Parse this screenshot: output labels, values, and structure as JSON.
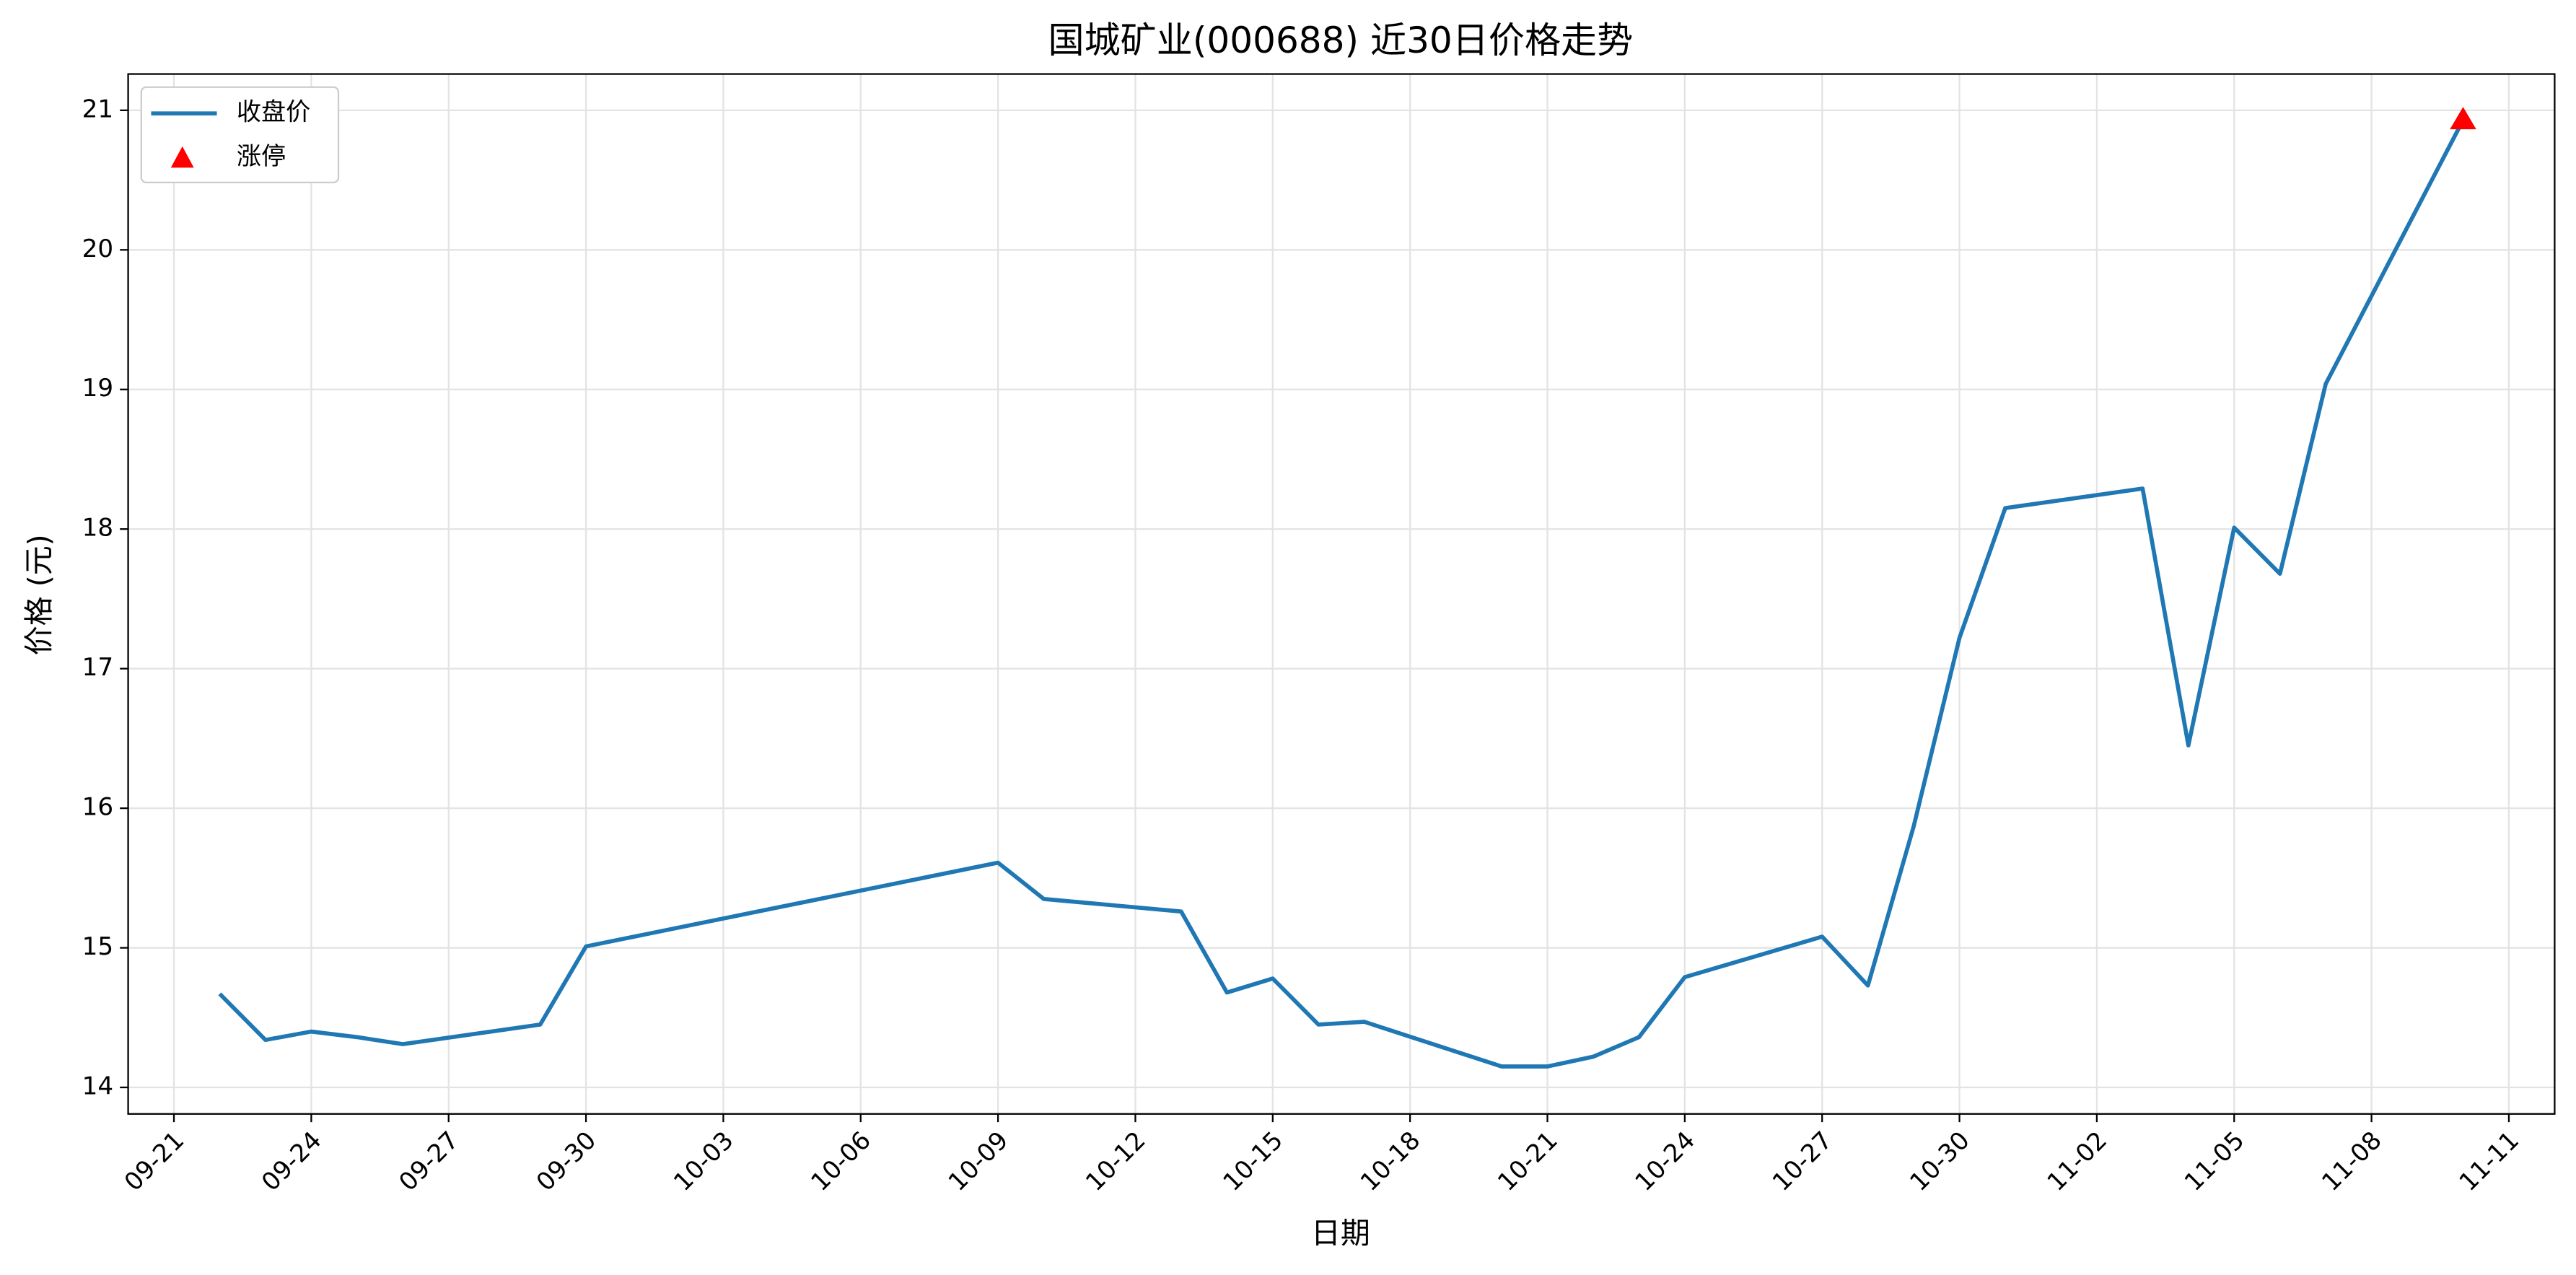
{
  "chart_data": {
    "type": "line",
    "title": "国城矿业(000688) 近30日价格走势",
    "xlabel": "日期",
    "ylabel": "价格 (元)",
    "x": [
      "09-22",
      "09-23",
      "09-24",
      "09-25",
      "09-26",
      "09-29",
      "09-30",
      "10-09",
      "10-10",
      "10-13",
      "10-14",
      "10-15",
      "10-16",
      "10-17",
      "10-20",
      "10-21",
      "10-22",
      "10-23",
      "10-24",
      "10-27",
      "10-28",
      "10-29",
      "10-30",
      "10-31",
      "11-03",
      "11-04",
      "11-05",
      "11-06",
      "11-07",
      "11-10"
    ],
    "series": [
      {
        "name": "收盘价",
        "color": "#1f77b4",
        "values": [
          14.67,
          14.34,
          14.4,
          14.36,
          14.31,
          14.45,
          15.01,
          15.61,
          15.35,
          15.26,
          14.68,
          14.78,
          14.45,
          14.47,
          14.15,
          14.15,
          14.22,
          14.36,
          14.79,
          15.08,
          14.73,
          15.87,
          17.22,
          18.15,
          18.29,
          16.45,
          18.01,
          17.68,
          19.04,
          20.93
        ]
      },
      {
        "name": "涨停",
        "color": "#ff0000",
        "type": "scatter",
        "marker": "triangle",
        "x": [
          "11-10"
        ],
        "values": [
          20.93
        ]
      }
    ],
    "xlim": [
      "09-20",
      "11-12"
    ],
    "ylim": [
      13.81,
      21.26
    ],
    "xticks": [
      "09-21",
      "09-24",
      "09-27",
      "09-30",
      "10-03",
      "10-06",
      "10-09",
      "10-12",
      "10-15",
      "10-18",
      "10-21",
      "10-24",
      "10-27",
      "10-30",
      "11-02",
      "11-05",
      "11-08",
      "11-11"
    ],
    "yticks": [
      14,
      15,
      16,
      17,
      18,
      19,
      20,
      21
    ],
    "grid": true,
    "legend": "upper left"
  }
}
